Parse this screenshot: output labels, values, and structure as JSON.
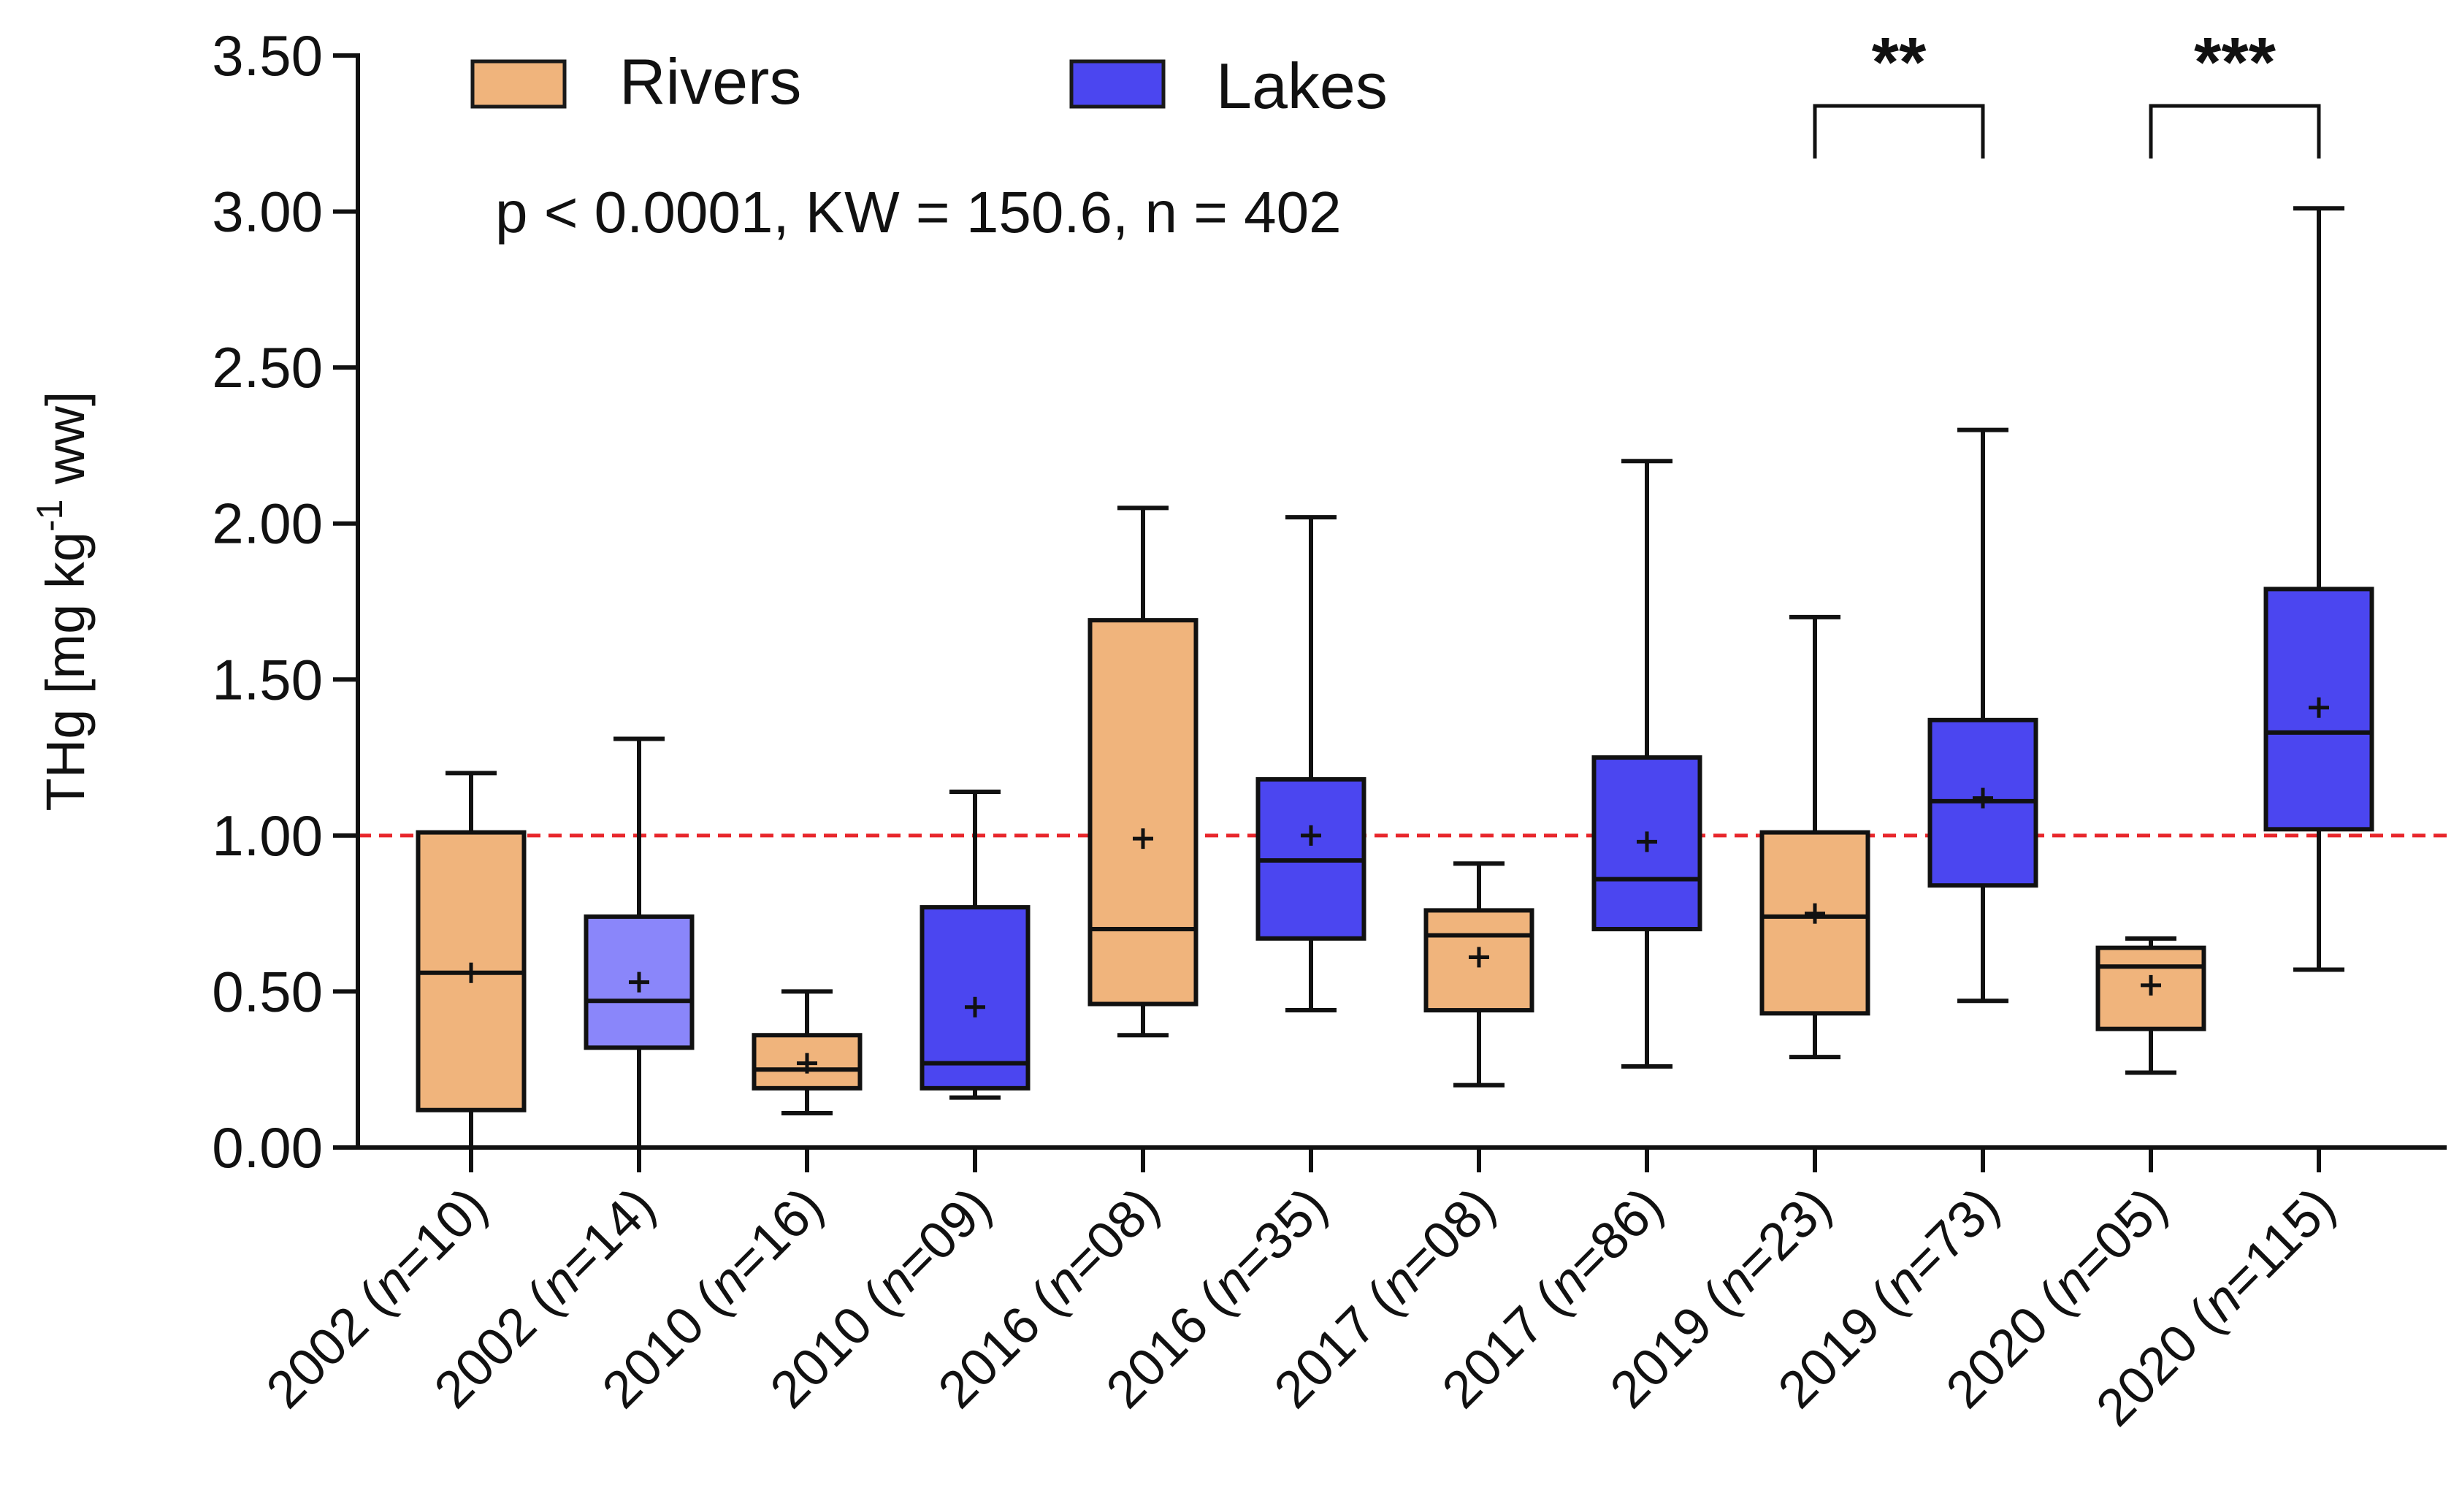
{
  "chart_data": {
    "type": "box",
    "title": "",
    "xlabel": "",
    "ylabel": "THg [mg kg-1 ww]",
    "ylabel_parts": {
      "main": "THg [mg kg",
      "superscript": "-1",
      "tail": " ww]"
    },
    "ylim": [
      0,
      3.5
    ],
    "yticks": [
      "0.00",
      "0.50",
      "1.00",
      "1.50",
      "2.00",
      "2.50",
      "3.00",
      "3.50"
    ],
    "ytick_values": [
      0,
      0.5,
      1.0,
      1.5,
      2.0,
      2.5,
      3.0,
      3.5
    ],
    "reference_line": {
      "value": 1.0,
      "color": "#e8262b",
      "style": "dashed"
    },
    "statistic_text": "p < 0.0001, KW = 150.6, n = 402",
    "legend": [
      {
        "label": "Rivers",
        "color": "#f0b47c"
      },
      {
        "label": "Lakes",
        "color": "#4b46f0"
      }
    ],
    "categories": [
      {
        "year": "2002",
        "n": "10",
        "group": "Rivers",
        "color": "#f0b47c",
        "min": 0.0,
        "q1": 0.12,
        "median": 0.56,
        "q3": 1.01,
        "max": 1.2,
        "mean": 0.56
      },
      {
        "year": "2002",
        "n": "14",
        "group": "Lakes",
        "color": "#8a86fa",
        "min": 0.0,
        "q1": 0.32,
        "median": 0.47,
        "q3": 0.74,
        "max": 1.31,
        "mean": 0.53
      },
      {
        "year": "2010",
        "n": "16",
        "group": "Rivers",
        "color": "#f0b47c",
        "min": 0.11,
        "q1": 0.19,
        "median": 0.25,
        "q3": 0.36,
        "max": 0.5,
        "mean": 0.27
      },
      {
        "year": "2010",
        "n": "09",
        "group": "Lakes",
        "color": "#4b46f0",
        "min": 0.16,
        "q1": 0.19,
        "median": 0.27,
        "q3": 0.77,
        "max": 1.14,
        "mean": 0.45
      },
      {
        "year": "2016",
        "n": "08",
        "group": "Rivers",
        "color": "#f0b47c",
        "min": 0.36,
        "q1": 0.46,
        "median": 0.7,
        "q3": 1.69,
        "max": 2.05,
        "mean": 0.99
      },
      {
        "year": "2016",
        "n": "35",
        "group": "Lakes",
        "color": "#4b46f0",
        "min": 0.44,
        "q1": 0.67,
        "median": 0.92,
        "q3": 1.18,
        "max": 2.02,
        "mean": 1.0
      },
      {
        "year": "2017",
        "n": "08",
        "group": "Rivers",
        "color": "#f0b47c",
        "min": 0.2,
        "q1": 0.44,
        "median": 0.68,
        "q3": 0.76,
        "max": 0.91,
        "mean": 0.61
      },
      {
        "year": "2017",
        "n": "86",
        "group": "Lakes",
        "color": "#4b46f0",
        "min": 0.26,
        "q1": 0.7,
        "median": 0.86,
        "q3": 1.25,
        "max": 2.2,
        "mean": 0.98
      },
      {
        "year": "2019",
        "n": "23",
        "group": "Rivers",
        "color": "#f0b47c",
        "min": 0.29,
        "q1": 0.43,
        "median": 0.74,
        "q3": 1.01,
        "max": 1.7,
        "mean": 0.75
      },
      {
        "year": "2019",
        "n": "73",
        "group": "Lakes",
        "color": "#4b46f0",
        "min": 0.47,
        "q1": 0.84,
        "median": 1.11,
        "q3": 1.37,
        "max": 2.3,
        "mean": 1.12
      },
      {
        "year": "2020",
        "n": "05",
        "group": "Rivers",
        "color": "#f0b47c",
        "min": 0.24,
        "q1": 0.38,
        "median": 0.58,
        "q3": 0.64,
        "max": 0.67,
        "mean": 0.52
      },
      {
        "year": "2020",
        "n": "115",
        "group": "Lakes",
        "color": "#4b46f0",
        "min": 0.57,
        "q1": 1.02,
        "median": 1.33,
        "q3": 1.79,
        "max": 3.01,
        "mean": 1.41
      }
    ],
    "significance": [
      {
        "from": 8,
        "to": 9,
        "label": "**",
        "level": 3.32
      },
      {
        "from": 10,
        "to": 11,
        "label": "***",
        "level": 3.32
      }
    ]
  }
}
